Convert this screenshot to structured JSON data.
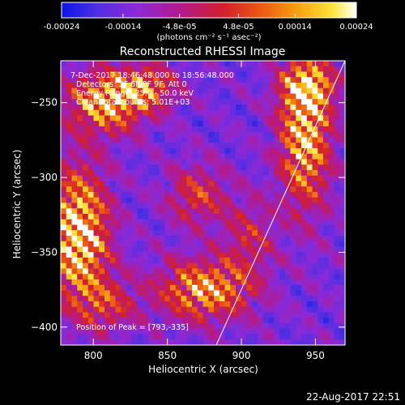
{
  "colorbar": {
    "tick_labels": [
      "-0.00024",
      "-0.00014",
      "-4.8e-05",
      "4.8e-05",
      "0.00014",
      "0.00024"
    ],
    "tick_values": [
      -0.00024,
      -0.00014,
      -4.8e-05,
      4.8e-05,
      0.00014,
      0.00024
    ],
    "range": [
      -0.00024,
      0.00024
    ],
    "units_label": "(photons cm⁻² s⁻¹ asec⁻²)",
    "colors": [
      "#0a14e6",
      "#4f2fe0",
      "#8a2ad8",
      "#b21a8c",
      "#d21f2c",
      "#ec5a12",
      "#f7a012",
      "#fde53a",
      "#ffffff"
    ]
  },
  "title": "Reconstructed RHESSI Image",
  "info": {
    "time_range": "7-Dec-2017 18:46:48.000 to 18:56:48.000",
    "detectors": "Detectors: 3F 6F 8F 9F, Att 0",
    "energy": "Energy Range: 25.0 - 50.0 keV",
    "clean": "Clean    Total counts: 5.01E+03",
    "peak": "Position of Peak = [793,-335]"
  },
  "footer_date": "22-Aug-2017 22:51",
  "chart_data": {
    "type": "heatmap",
    "title": "Reconstructed RHESSI Image",
    "xlabel": "Heliocentric X (arcsec)",
    "ylabel": "Heliocentric Y (arcsec)",
    "xlim": [
      778,
      970
    ],
    "ylim": [
      -412,
      -222
    ],
    "xticks": [
      800,
      850,
      900,
      950
    ],
    "yticks": [
      -250,
      -300,
      -350,
      -400
    ],
    "xtick_labels": [
      "800",
      "850",
      "900",
      "950"
    ],
    "ytick_labels": [
      "−250",
      "−300",
      "−350",
      "−400"
    ],
    "limb_line": [
      [
        883,
        -412
      ],
      [
        970,
        -222
      ]
    ],
    "peak": [
      793,
      -335
    ],
    "hotspots": [
      {
        "x": 790,
        "y": -338,
        "sx": 14,
        "sy": 30,
        "amp": 1.0
      },
      {
        "x": 808,
        "y": -250,
        "sx": 18,
        "sy": 14,
        "amp": 0.8
      },
      {
        "x": 835,
        "y": -240,
        "sx": 14,
        "sy": 10,
        "amp": 0.6
      },
      {
        "x": 943,
        "y": -270,
        "sx": 12,
        "sy": 35,
        "amp": 0.85
      },
      {
        "x": 945,
        "y": -240,
        "sx": 12,
        "sy": 10,
        "amp": 0.6
      },
      {
        "x": 875,
        "y": -375,
        "sx": 22,
        "sy": 14,
        "amp": 0.75
      },
      {
        "x": 870,
        "y": -312,
        "sx": 14,
        "sy": 14,
        "amp": 0.45
      },
      {
        "x": 810,
        "y": -385,
        "sx": 14,
        "sy": 12,
        "amp": 0.4
      },
      {
        "x": 905,
        "y": -340,
        "sx": 12,
        "sy": 18,
        "amp": 0.35
      }
    ]
  }
}
